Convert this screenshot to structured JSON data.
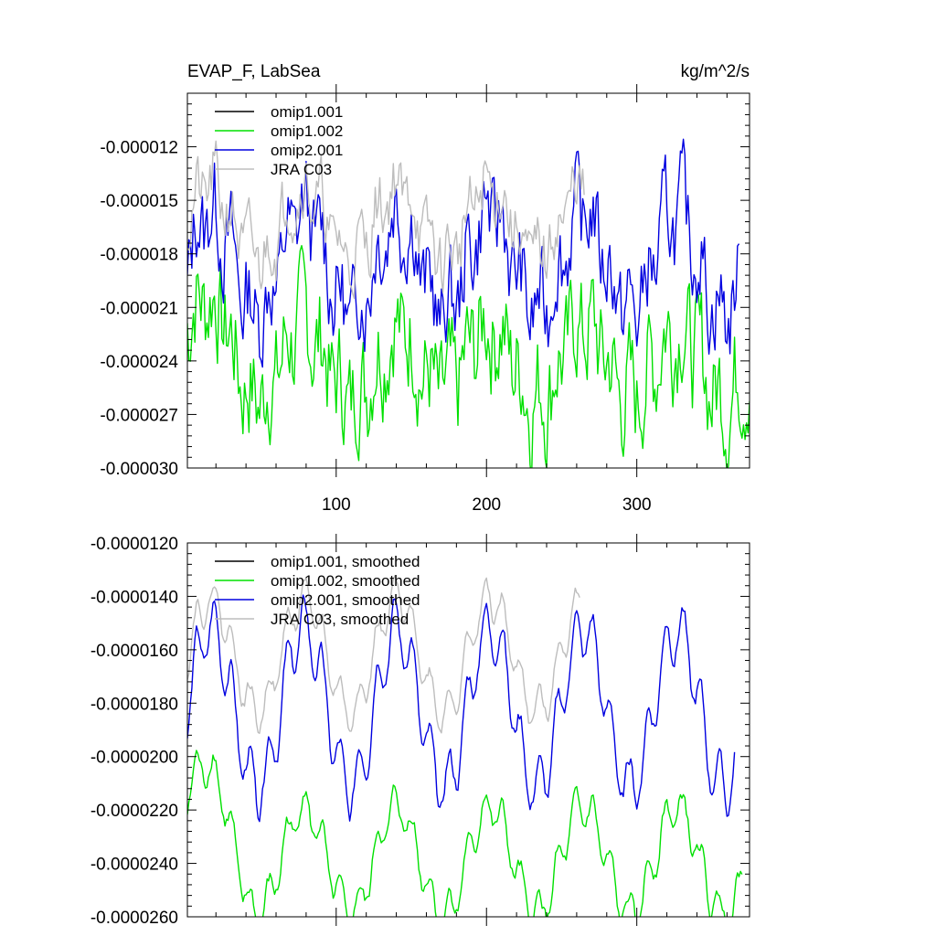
{
  "chart_data": [
    {
      "type": "line",
      "title_left": "EVAP_F, LabSea",
      "title_right": "kg/m^2/s",
      "xlim": [
        1,
        375
      ],
      "ylim": [
        -3e-05,
        -9e-06
      ],
      "xticks": [
        100,
        200,
        300
      ],
      "xtick_labels": [
        "100",
        "200",
        "300"
      ],
      "yticks": [
        -3e-05,
        -2.7e-05,
        -2.4e-05,
        -2.1e-05,
        -1.8e-05,
        -1.5e-05,
        -1.2e-05
      ],
      "ytick_labels": [
        "-0.000030",
        "-0.000027",
        "-0.000024",
        "-0.000021",
        "-0.000018",
        "-0.000015",
        "-0.000012"
      ],
      "legend_placement": "top-left",
      "series": [
        {
          "name": "omip1.001",
          "color": "#000000",
          "gen": {
            "n": 0,
            "mean": -2.1e-05,
            "amp": 1.5e-06,
            "noise": 2.5e-06,
            "trend": 0,
            "seed": 1
          }
        },
        {
          "name": "omip1.002",
          "color": "#00e000",
          "gen": {
            "n": 375,
            "mean": -2.15e-05,
            "amp": 1.8e-06,
            "noise": 2.8e-06,
            "trend": -2.5e-06,
            "seed": 7
          }
        },
        {
          "name": "omip2.001",
          "color": "#0000e0",
          "gen": {
            "n": 368,
            "mean": -1.85e-05,
            "amp": 2.5e-06,
            "noise": 2.2e-06,
            "trend": 0,
            "seed": 13
          }
        },
        {
          "name": "JRA C03",
          "color": "#bdbdbd",
          "gen": {
            "n": 265,
            "mean": -1.62e-05,
            "amp": 1.8e-06,
            "noise": 1.6e-06,
            "trend": 0,
            "seed": 21
          }
        }
      ]
    },
    {
      "type": "line",
      "title_left": "",
      "title_right": "",
      "xlim": [
        1,
        375
      ],
      "ylim": [
        -2.6e-05,
        -1.2e-05
      ],
      "xticks": [
        100,
        200,
        300
      ],
      "xtick_labels": [],
      "yticks": [
        -2.6e-05,
        -2.4e-05,
        -2.2e-05,
        -2e-05,
        -1.8e-05,
        -1.6e-05,
        -1.4e-05,
        -1.2e-05
      ],
      "ytick_labels": [
        "-0.0000260",
        "-0.0000240",
        "-0.0000220",
        "-0.0000200",
        "-0.0000180",
        "-0.0000160",
        "-0.0000140",
        "-0.0000120"
      ],
      "legend_placement": "top-left",
      "series": [
        {
          "name": "omip1.001, smoothed",
          "color": "#000000",
          "gen": {
            "n": 0,
            "mean": -2.1e-05,
            "amp": 1.5e-06,
            "noise": 2e-07,
            "trend": 0,
            "seed": 2
          }
        },
        {
          "name": "omip1.002, smoothed",
          "color": "#00e000",
          "gen": {
            "n": 370,
            "mean": -2.14e-05,
            "amp": 1.8e-06,
            "noise": 2.5e-07,
            "trend": -2.5e-06,
            "seed": 8
          }
        },
        {
          "name": "omip2.001, smoothed",
          "color": "#0000e0",
          "gen": {
            "n": 365,
            "mean": -1.82e-05,
            "amp": 2.7e-06,
            "noise": 2.5e-07,
            "trend": 0,
            "seed": 14
          }
        },
        {
          "name": "JRA C03, smoothed",
          "color": "#bdbdbd",
          "gen": {
            "n": 262,
            "mean": -1.62e-05,
            "amp": 1.9e-06,
            "noise": 2e-07,
            "trend": 0,
            "seed": 22
          }
        }
      ]
    }
  ]
}
